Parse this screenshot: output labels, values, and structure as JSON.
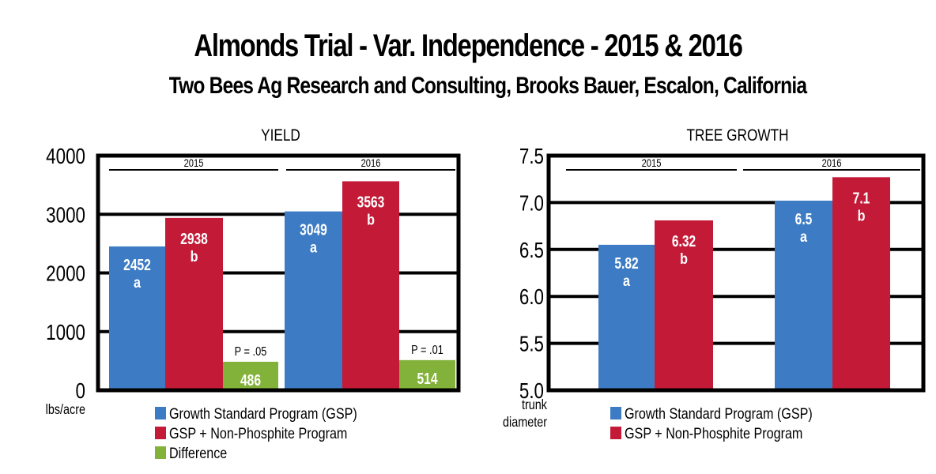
{
  "title": "Almonds Trial - Var. Independence - 2015 & 2016",
  "subtitle": "Two Bees Ag Research and Consulting, Brooks Bauer, Escalon, California",
  "colors": {
    "gsp": "#3d7cc4",
    "gsp_non_phosphite": "#c31b37",
    "difference": "#83b23a",
    "axis": "#000000"
  },
  "chart_data": [
    {
      "type": "bar",
      "title": "YIELD",
      "ylabel": "lbs/acre",
      "xlabel": "",
      "ylim": [
        0,
        4000
      ],
      "yticks": [
        "0",
        "1000",
        "2000",
        "3000",
        "4000"
      ],
      "ytick_values": [
        0,
        1000,
        2000,
        3000,
        4000
      ],
      "grid": true,
      "categories": [
        "2015",
        "2016"
      ],
      "series": [
        {
          "name": "Growth Standard Program (GSP)",
          "key": "gsp",
          "values": [
            2452,
            3049
          ],
          "letters": [
            "a",
            "a"
          ]
        },
        {
          "name": "GSP + Non-Phosphite Program",
          "key": "gsp_non_phosphite",
          "values": [
            2938,
            3563
          ],
          "letters": [
            "b",
            "b"
          ]
        },
        {
          "name": "Difference",
          "key": "difference",
          "values": [
            486,
            514
          ],
          "annotations": [
            "P = .05",
            "P = .01"
          ]
        }
      ],
      "legend_position": "bottom"
    },
    {
      "type": "bar",
      "title": "TREE GROWTH",
      "ylabel": "trunk diameter",
      "xlabel": "",
      "ylim": [
        5.0,
        7.5
      ],
      "yticks": [
        "5.0",
        "5.5",
        "6.0",
        "6.5",
        "7.0",
        "7.5"
      ],
      "ytick_values": [
        5.0,
        5.5,
        6.0,
        6.5,
        7.0,
        7.5
      ],
      "grid": true,
      "categories": [
        "2015",
        "2016"
      ],
      "series": [
        {
          "name": "Growth Standard Program (GSP)",
          "key": "gsp",
          "values": [
            5.82,
            6.5
          ],
          "letters": [
            "a",
            "a"
          ],
          "drawn_at": [
            6.55,
            7.02
          ]
        },
        {
          "name": "GSP + Non-Phosphite Program",
          "key": "gsp_non_phosphite",
          "values": [
            6.32,
            7.1
          ],
          "letters": [
            "b",
            "b"
          ],
          "drawn_at": [
            6.81,
            7.27
          ]
        }
      ],
      "legend_position": "bottom"
    }
  ]
}
